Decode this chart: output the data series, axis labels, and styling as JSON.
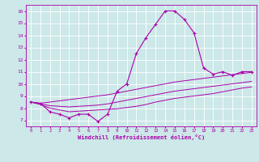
{
  "xlabel": "Windchill (Refroidissement éolien,°C)",
  "main_line": [
    8.5,
    8.4,
    7.7,
    7.5,
    7.2,
    7.5,
    7.5,
    6.9,
    7.5,
    9.4,
    10.0,
    12.5,
    13.8,
    14.9,
    16.0,
    16.0,
    15.3,
    14.2,
    11.3,
    10.8,
    11.0,
    10.7,
    11.0,
    11.0
  ],
  "upper_line": [
    8.5,
    8.4,
    8.5,
    8.6,
    8.7,
    8.8,
    8.9,
    9.0,
    9.1,
    9.25,
    9.4,
    9.55,
    9.7,
    9.85,
    10.0,
    10.15,
    10.25,
    10.35,
    10.45,
    10.55,
    10.65,
    10.75,
    10.85,
    10.95
  ],
  "mid_line": [
    8.5,
    8.35,
    8.2,
    8.15,
    8.1,
    8.15,
    8.2,
    8.25,
    8.35,
    8.5,
    8.65,
    8.8,
    8.95,
    9.1,
    9.25,
    9.4,
    9.5,
    9.6,
    9.7,
    9.8,
    9.9,
    10.0,
    10.1,
    10.2
  ],
  "lower_line": [
    8.5,
    8.3,
    8.0,
    7.85,
    7.7,
    7.75,
    7.8,
    7.85,
    7.9,
    7.95,
    8.05,
    8.15,
    8.3,
    8.5,
    8.65,
    8.8,
    8.9,
    9.0,
    9.1,
    9.2,
    9.35,
    9.5,
    9.65,
    9.75
  ],
  "x": [
    0,
    1,
    2,
    3,
    4,
    5,
    6,
    7,
    8,
    9,
    10,
    11,
    12,
    13,
    14,
    15,
    16,
    17,
    18,
    19,
    20,
    21,
    22,
    23
  ],
  "ylim": [
    6.5,
    16.5
  ],
  "xlim": [
    -0.5,
    23.5
  ],
  "yticks": [
    7,
    8,
    9,
    10,
    11,
    12,
    13,
    14,
    15,
    16
  ],
  "xticks": [
    0,
    1,
    2,
    3,
    4,
    5,
    6,
    7,
    8,
    9,
    10,
    11,
    12,
    13,
    14,
    15,
    16,
    17,
    18,
    19,
    20,
    21,
    22,
    23
  ],
  "line_color": "#aa00aa",
  "bg_color": "#cce8e8",
  "grid_color": "#b0d8d8",
  "text_color": "#aa00aa",
  "fig_width": 3.2,
  "fig_height": 2.0,
  "dpi": 100
}
